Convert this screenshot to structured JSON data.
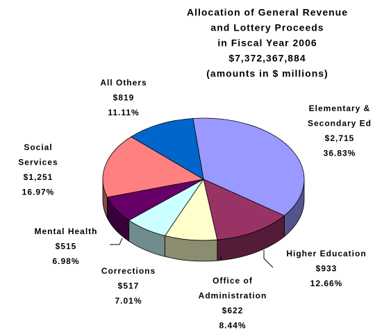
{
  "chart_data": {
    "type": "pie3d",
    "title": [
      "Allocation of General Revenue",
      "and Lottery Proceeds",
      "in Fiscal Year 2006",
      "$7,372,367,884",
      "(amounts in $ millions)"
    ],
    "categories": [
      [
        "Elementary &",
        "Secondary Ed"
      ],
      [
        "Higher Education"
      ],
      [
        "Office of",
        "Administration"
      ],
      [
        "Corrections"
      ],
      [
        "Mental Health"
      ],
      [
        "Social",
        "Services"
      ],
      [
        "All Others"
      ]
    ],
    "values": [
      2715,
      933,
      622,
      517,
      515,
      1251,
      819
    ],
    "value_labels": [
      "$2,715",
      "$933",
      "$622",
      "$517",
      "$515",
      "$1,251",
      "$819"
    ],
    "percents": [
      36.83,
      12.66,
      8.44,
      7.01,
      6.98,
      16.97,
      11.11
    ],
    "percent_labels": [
      "36.83%",
      "12.66%",
      "8.44%",
      "7.01%",
      "6.98%",
      "16.97%",
      "11.11%"
    ],
    "colors": [
      "#9999ff",
      "#993366",
      "#ffffcc",
      "#ccffff",
      "#660066",
      "#ff8080",
      "#0066cc"
    ]
  }
}
